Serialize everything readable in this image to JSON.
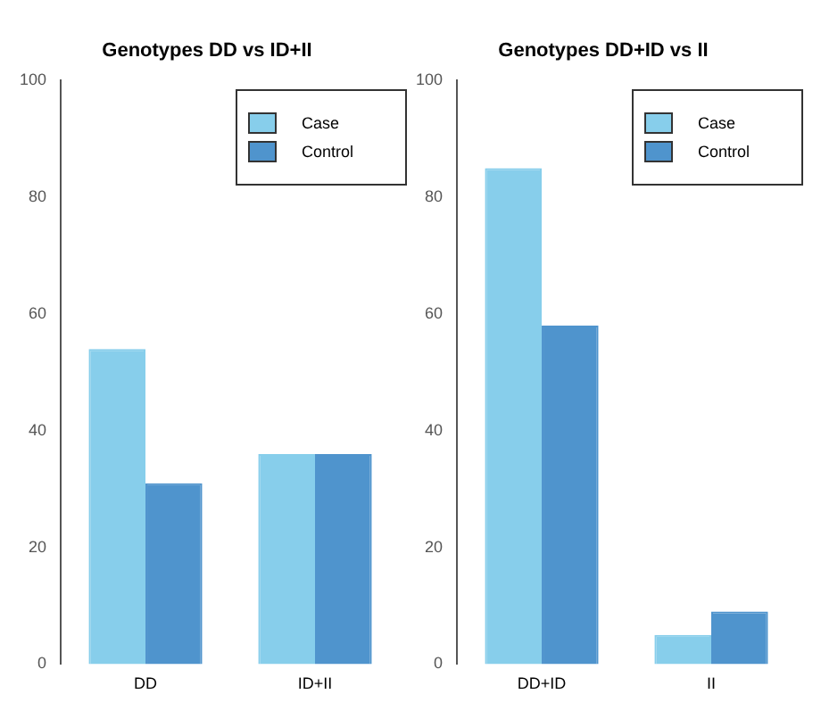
{
  "chart_data": [
    {
      "type": "bar",
      "title": "Genotypes DD vs ID+II",
      "categories": [
        "DD",
        "ID+II"
      ],
      "series": [
        {
          "name": "Case",
          "color": "#87ceeb",
          "values": [
            54,
            36
          ]
        },
        {
          "name": "Control",
          "color": "#4f94cd",
          "values": [
            31,
            36
          ]
        }
      ],
      "ylim": [
        0,
        100
      ],
      "yticks": [
        0,
        20,
        40,
        60,
        80,
        100
      ],
      "grid": false,
      "legend": "top right"
    },
    {
      "type": "bar",
      "title": "Genotypes DD+ID vs II",
      "categories": [
        "DD+ID",
        "II"
      ],
      "series": [
        {
          "name": "Case",
          "color": "#87ceeb",
          "values": [
            85,
            5
          ]
        },
        {
          "name": "Control",
          "color": "#4f94cd",
          "values": [
            58,
            9
          ]
        }
      ],
      "ylim": [
        0,
        100
      ],
      "yticks": [
        0,
        20,
        40,
        60,
        80,
        100
      ],
      "grid": false,
      "legend": "top right"
    }
  ]
}
